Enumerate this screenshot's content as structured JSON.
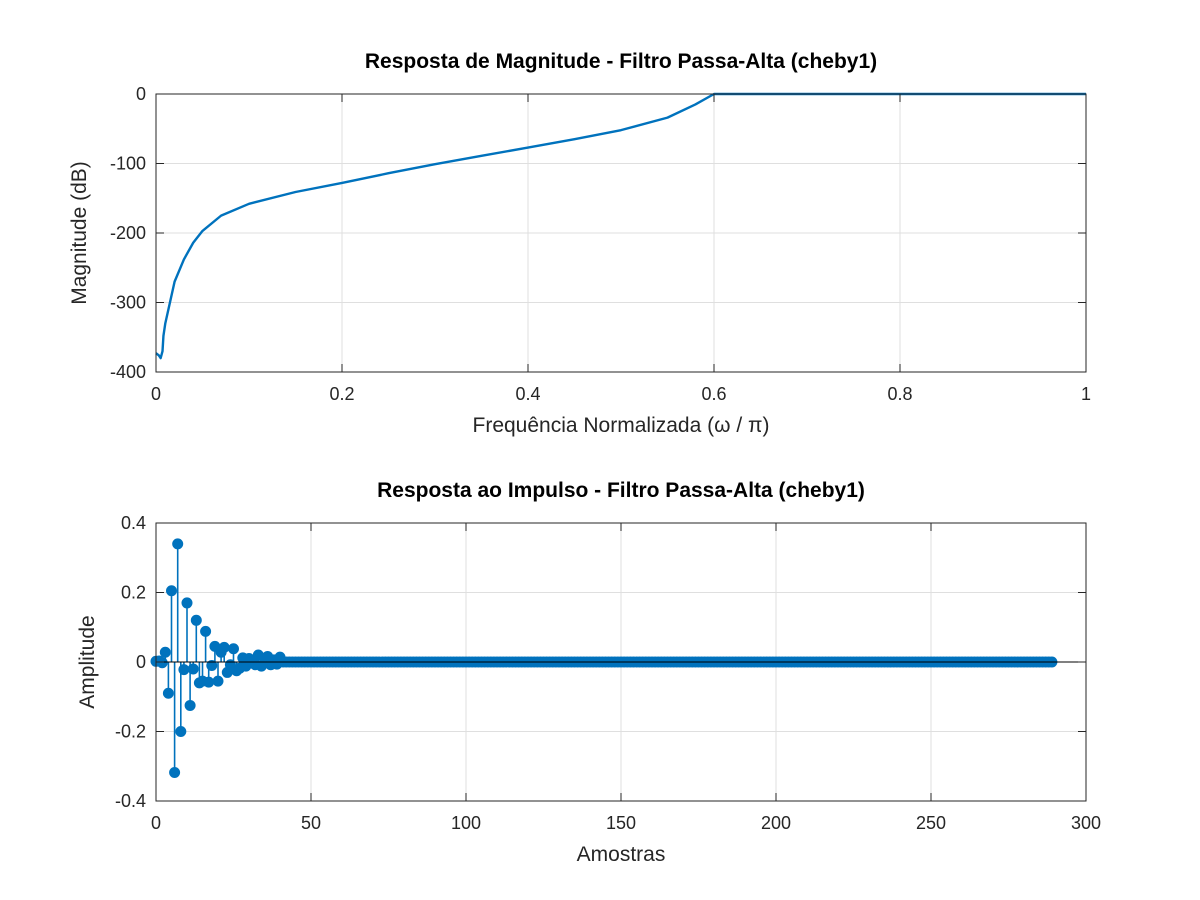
{
  "chart_data": [
    {
      "type": "line",
      "title": "Resposta de Magnitude - Filtro Passa-Alta (cheby1)",
      "xlabel": "Frequência Normalizada (ω / π)",
      "ylabel": "Magnitude (dB)",
      "xlim": [
        0,
        1
      ],
      "ylim": [
        -400,
        0
      ],
      "xticks": [
        0,
        0.2,
        0.4,
        0.6,
        0.8,
        1
      ],
      "xtick_labels": [
        "0",
        "0.2",
        "0.4",
        "0.6",
        "0.8",
        "1"
      ],
      "yticks": [
        0,
        -100,
        -200,
        -300,
        -400
      ],
      "ytick_labels": [
        "0",
        "-100",
        "-200",
        "-300",
        "-400"
      ],
      "grid": true,
      "color": "#0072BD",
      "series": [
        {
          "x": [
            0,
            0.003,
            0.005,
            0.007,
            0.008,
            0.01,
            0.015,
            0.02,
            0.03,
            0.04,
            0.05,
            0.07,
            0.1,
            0.15,
            0.2,
            0.25,
            0.3,
            0.35,
            0.4,
            0.45,
            0.5,
            0.55,
            0.58,
            0.6,
            0.7,
            0.8,
            0.9,
            1
          ],
          "y": [
            -373,
            -376,
            -380,
            -370,
            -348,
            -330,
            -300,
            -270,
            -238,
            -214,
            -197,
            -175,
            -158,
            -141,
            -128,
            -114,
            -101,
            -89,
            -77,
            -65,
            -52,
            -34,
            -15,
            0,
            0,
            0,
            0,
            0
          ]
        }
      ]
    },
    {
      "type": "stem",
      "title": "Resposta ao Impulso - Filtro Passa-Alta (cheby1)",
      "xlabel": "Amostras",
      "ylabel": "Amplitude",
      "xlim": [
        0,
        300
      ],
      "ylim": [
        -0.4,
        0.4
      ],
      "xticks": [
        0,
        50,
        100,
        150,
        200,
        250,
        300
      ],
      "xtick_labels": [
        "0",
        "50",
        "100",
        "150",
        "200",
        "250",
        "300"
      ],
      "yticks": [
        0.4,
        0.2,
        0,
        -0.2,
        -0.4
      ],
      "ytick_labels": [
        "0.4",
        "0.2",
        "0",
        "-0.2",
        "-0.4"
      ],
      "grid": true,
      "color": "#0072BD",
      "n_samples": 290,
      "series": [
        {
          "x": [
            0,
            1,
            2,
            3,
            4,
            5,
            6,
            7,
            8,
            9,
            10,
            11,
            12,
            13,
            14,
            15,
            16,
            17,
            18,
            19,
            20,
            21,
            22,
            23,
            24,
            25,
            26,
            27,
            28,
            29,
            30,
            31,
            32,
            33,
            34,
            35,
            36,
            37,
            38,
            39,
            40
          ],
          "y": [
            0.002,
            0.003,
            -0.002,
            0.028,
            -0.09,
            0.205,
            -0.318,
            0.34,
            -0.2,
            -0.022,
            0.17,
            -0.125,
            -0.02,
            0.12,
            -0.06,
            -0.055,
            0.088,
            -0.058,
            -0.01,
            0.045,
            -0.055,
            0.028,
            0.042,
            -0.03,
            -0.008,
            0.038,
            -0.025,
            -0.018,
            0.012,
            -0.012,
            0.01,
            0.004,
            -0.008,
            0.02,
            -0.012,
            0.008,
            0.016,
            -0.008,
            0.006,
            -0.006,
            0.014
          ]
        }
      ]
    }
  ]
}
